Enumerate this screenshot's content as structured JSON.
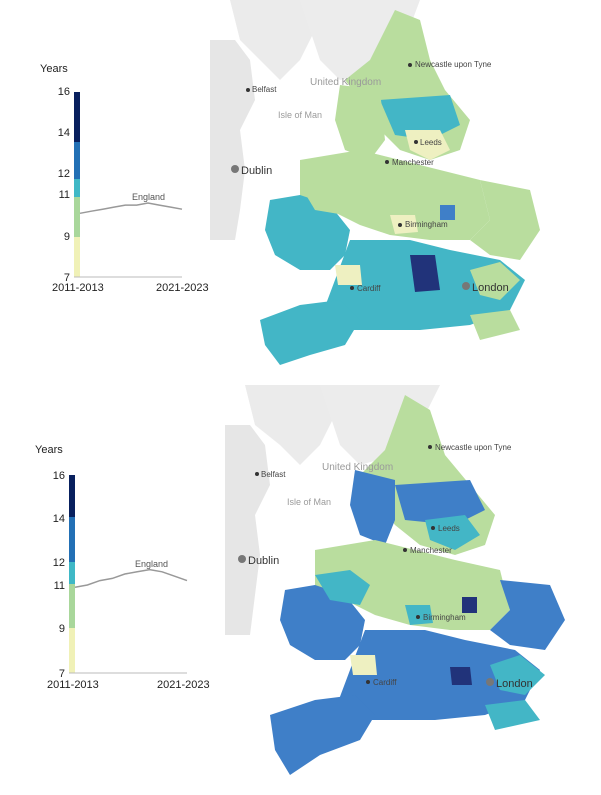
{
  "maps": [
    {
      "id": "top",
      "chart": {
        "ylabel": "Years",
        "yticks": [
          "16",
          "14",
          "12",
          "11",
          "9",
          "7"
        ],
        "x_start_label": "2011-2013",
        "x_end_label": "2021-2023",
        "series_label": "England",
        "england_values": [
          10.1,
          10.2,
          10.3,
          10.4,
          10.5,
          10.5,
          10.6,
          10.5,
          10.4,
          10.3
        ]
      },
      "places": {
        "newcastle": "Newcastle upon Tyne",
        "uk": "United Kingdom",
        "belfast": "Belfast",
        "isle_of_man": "Isle of Man",
        "leeds": "Leeds",
        "manchester": "Manchester",
        "dublin": "Dublin",
        "birmingham": "Birmingham",
        "cardiff": "Cardiff",
        "london": "London"
      }
    },
    {
      "id": "bottom",
      "chart": {
        "ylabel": "Years",
        "yticks": [
          "16",
          "14",
          "12",
          "11",
          "9",
          "7"
        ],
        "x_start_label": "2011-2013",
        "x_end_label": "2021-2023",
        "series_label": "England",
        "england_values": [
          10.9,
          11.0,
          11.2,
          11.3,
          11.5,
          11.6,
          11.7,
          11.6,
          11.4,
          11.2
        ]
      },
      "places": {
        "newcastle": "Newcastle upon Tyne",
        "uk": "United Kingdom",
        "belfast": "Belfast",
        "isle_of_man": "Isle of Man",
        "leeds": "Leeds",
        "manchester": "Manchester",
        "dublin": "Dublin",
        "birmingham": "Birmingham",
        "cardiff": "Cardiff",
        "london": "London"
      }
    }
  ],
  "legend_colors": {
    "band_7_9": "#f0f1b7",
    "band_9_11": "#a9d79b",
    "band_11_12": "#3fb8c6",
    "band_12_14": "#2270b5",
    "band_14_16": "#08205e"
  },
  "map_colors": {
    "land_background": "#e8e8e8",
    "sea": "#ffffff",
    "light_green": "#b9dd9e",
    "cream": "#eef0c1",
    "teal": "#43b6c6",
    "mid_blue": "#3f7fc8",
    "navy": "#21337a"
  }
}
